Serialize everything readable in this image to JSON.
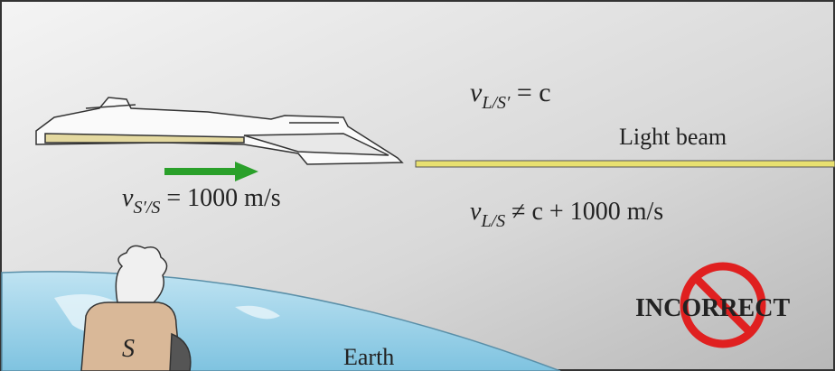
{
  "labels": {
    "light_in_ship": {
      "symbol": "v",
      "subscript": "L/S′",
      "rest": " = c"
    },
    "light_beam": "Light beam",
    "ship_velocity": {
      "symbol": "v",
      "subscript": "S′/S",
      "rest": " = 1000 m/s"
    },
    "light_in_earth": {
      "symbol": "v",
      "subscript": "L/S",
      "rest": " ≠ c + 1000 m/s"
    },
    "incorrect": "INCORRECT",
    "observer": "S",
    "earth": "Earth"
  }
}
